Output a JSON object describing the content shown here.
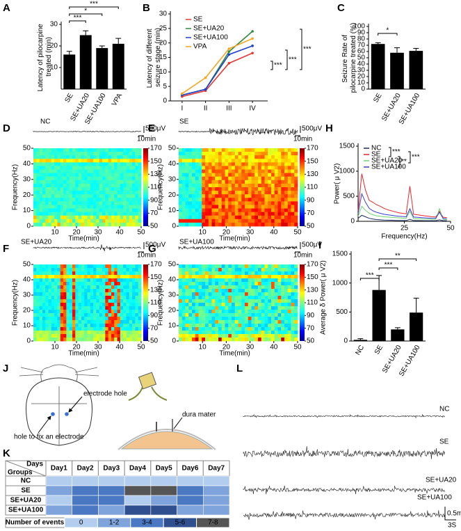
{
  "chart_data": [
    {
      "panel": "A",
      "type": "bar",
      "ylabel": "Latency of pilocarpine treated (min)",
      "categories": [
        "SE",
        "SE+UA20",
        "SE+UA100",
        "VPA"
      ],
      "values": [
        16,
        25,
        19,
        21
      ],
      "errors": [
        1.5,
        2,
        1,
        2.5
      ],
      "color": "#000000",
      "ylim": [
        0,
        30
      ],
      "yticks": [
        10,
        20,
        30
      ],
      "annotations": [
        "***",
        "*",
        "***"
      ]
    },
    {
      "panel": "B",
      "type": "line",
      "ylabel": "Latency of different seizure stage (min)",
      "categories": [
        "I",
        "II",
        "III",
        "IV"
      ],
      "series": [
        {
          "name": "SE",
          "color": "#e53935",
          "values": [
            1.5,
            3.5,
            13,
            16.5
          ]
        },
        {
          "name": "SE+UA20",
          "color": "#2e8b3a",
          "values": [
            2,
            4,
            17,
            24
          ]
        },
        {
          "name": "SE+UA100",
          "color": "#1f3fd1",
          "values": [
            2,
            4,
            16,
            19
          ]
        },
        {
          "name": "VPA",
          "color": "#f5a623",
          "values": [
            2.5,
            8,
            18,
            21.5
          ]
        }
      ],
      "ylim": [
        0,
        30
      ],
      "yticks": [
        0,
        5,
        10,
        15,
        20,
        25,
        30
      ],
      "annotations": [
        "***",
        "***",
        "***"
      ]
    },
    {
      "panel": "C",
      "type": "bar",
      "ylabel": "Seizure Rate of pilocarpine treated (%)",
      "categories": [
        "SE",
        "SE+UA20",
        "SE+UA100"
      ],
      "values": [
        72,
        58,
        61
      ],
      "errors": [
        2,
        8,
        4
      ],
      "color": "#000000",
      "ylim": [
        0,
        100
      ],
      "yticks": [
        0,
        10,
        20,
        30,
        40,
        50,
        60,
        70,
        80,
        90,
        100
      ],
      "annotations": [
        "*"
      ]
    },
    {
      "panel": "H",
      "type": "line",
      "xlabel": "Frequency(Hz)",
      "ylabel": "Power( μ V2)",
      "x": [
        0,
        2,
        4,
        6,
        8,
        10,
        12,
        14,
        16,
        18,
        20,
        22,
        24,
        26,
        28,
        30,
        32,
        34,
        36,
        38,
        40,
        42,
        44,
        46,
        48
      ],
      "series": [
        {
          "name": "NC",
          "color": "#1a2b5e",
          "values": [
            60,
            120,
            90,
            60,
            45,
            35,
            30,
            25,
            22,
            20,
            18,
            16,
            15,
            15,
            40,
            15,
            14,
            14,
            13,
            13,
            12,
            12,
            30,
            12,
            12
          ]
        },
        {
          "name": "SE",
          "color": "#e8262a",
          "values": [
            200,
            950,
            620,
            420,
            380,
            330,
            300,
            260,
            230,
            210,
            190,
            170,
            160,
            150,
            700,
            140,
            130,
            120,
            110,
            100,
            90,
            85,
            200,
            80,
            75
          ]
        },
        {
          "name": "SE+UA20",
          "color": "#6fd46f",
          "values": [
            100,
            300,
            220,
            160,
            130,
            110,
            100,
            90,
            85,
            80,
            75,
            70,
            65,
            60,
            200,
            55,
            50,
            50,
            45,
            45,
            40,
            40,
            250,
            40,
            35
          ]
        },
        {
          "name": "SE+UA100",
          "color": "#3b3bd9",
          "values": [
            150,
            550,
            380,
            260,
            210,
            180,
            160,
            140,
            130,
            120,
            110,
            100,
            95,
            90,
            250,
            85,
            80,
            75,
            70,
            65,
            60,
            60,
            180,
            55,
            50
          ]
        }
      ],
      "xlim": [
        0,
        50
      ],
      "xticks": [
        25,
        50
      ],
      "ylim": [
        0,
        1500
      ],
      "yticks": [
        0,
        500,
        1000,
        1500
      ],
      "annotations": [
        "***",
        "**",
        "***"
      ]
    },
    {
      "panel": "I",
      "type": "bar",
      "ylabel": "Average δ Power( μ V2)",
      "categories": [
        "NC",
        "SE",
        "SE+UA20",
        "SE+UA100"
      ],
      "values": [
        20,
        880,
        200,
        490
      ],
      "errors": [
        20,
        250,
        30,
        250
      ],
      "color": "#000000",
      "ylim": [
        0,
        1500
      ],
      "yticks": [
        0,
        500,
        1000,
        1500
      ],
      "annotations": [
        "**",
        "***",
        "***"
      ]
    }
  ],
  "spectrograms": {
    "ylabel": "Frequency(Hz)",
    "xlabel": "Time(min)",
    "xlim": [
      0,
      50
    ],
    "xticks": [
      10,
      20,
      30,
      40,
      50
    ],
    "ylim": [
      0,
      50
    ],
    "yticks": [
      0,
      10,
      20,
      30,
      40,
      50
    ],
    "clim": [
      50,
      170
    ],
    "cticks": [
      50,
      70,
      90,
      110,
      130,
      150,
      170
    ],
    "amplitude_scale": "500μV",
    "time_scale": "10min",
    "panels": [
      {
        "panel": "D",
        "title": "NC"
      },
      {
        "panel": "E",
        "title": "SE"
      },
      {
        "panel": "F",
        "title": "SE+UA20"
      },
      {
        "panel": "G",
        "title": "SE+UA100"
      }
    ]
  },
  "diagram": {
    "panel": "J",
    "labels": [
      "electrode hole",
      "hole to fix an electrode",
      "dura mater"
    ]
  },
  "table": {
    "panel": "K",
    "corner": [
      "Days",
      "Groups"
    ],
    "columns": [
      "Day1",
      "Day2",
      "Day3",
      "Day4",
      "Day5",
      "Day6",
      "Day7"
    ],
    "rows": [
      {
        "group": "NC",
        "levels": [
          0,
          0,
          0,
          0,
          0,
          0,
          0
        ]
      },
      {
        "group": "SE",
        "levels": [
          1,
          2,
          2,
          4,
          4,
          2,
          1
        ]
      },
      {
        "group": "SE+UA20",
        "levels": [
          0,
          2,
          2,
          0,
          1,
          2,
          1
        ]
      },
      {
        "group": "SE+UA100",
        "levels": [
          1,
          2,
          1,
          3,
          3,
          1,
          1
        ]
      }
    ],
    "legend_title": "Number of events",
    "levels": [
      {
        "label": "0",
        "color": "#b3cdef"
      },
      {
        "label": "1-2",
        "color": "#7fa4db"
      },
      {
        "label": "3-4",
        "color": "#4a78c2"
      },
      {
        "label": "5-6",
        "color": "#2f4f8e"
      },
      {
        "label": "7-8",
        "color": "#555555"
      }
    ]
  },
  "traces": {
    "panel": "L",
    "labels": [
      "NC",
      "SE",
      "SE+UA20",
      "SE+UA100"
    ],
    "amplitude_scale": "0.5mV",
    "time_scale": "3S"
  }
}
